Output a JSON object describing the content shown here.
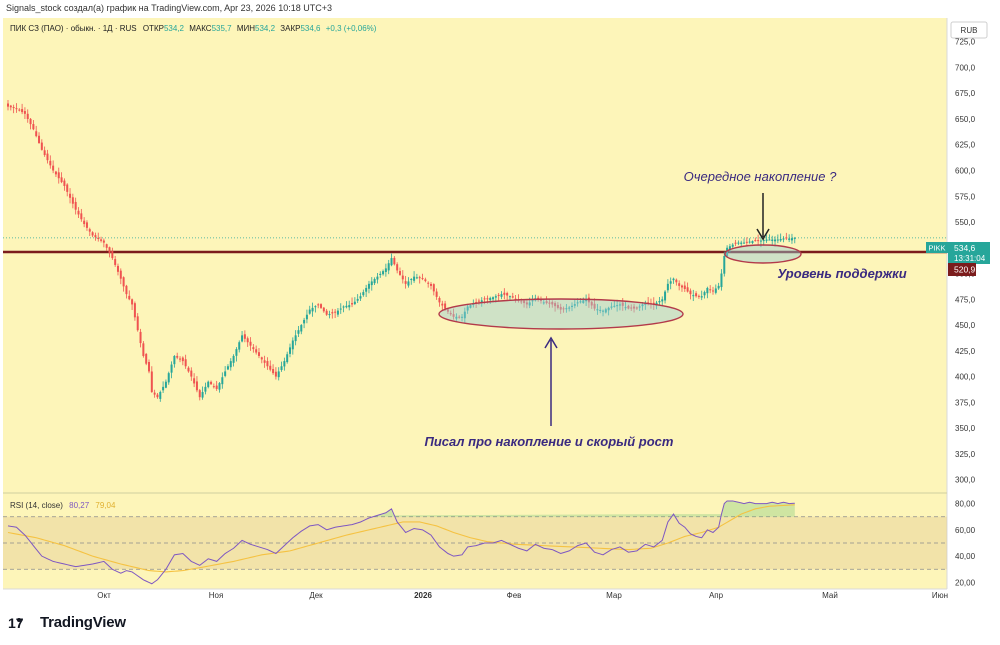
{
  "header": {
    "caption": "Signals_stock создал(а) график на TradingView.com, Apr 23, 2026 10:18 UTC+3"
  },
  "legend": {
    "symbol": "ПИК СЗ (ПАО) · обыкн. · 1Д · RUS",
    "o_label": "ОТКР",
    "o_val": "534,2",
    "h_label": "МАКС",
    "h_val": "535,7",
    "l_label": "МИН",
    "l_val": "534,2",
    "c_label": "ЗАКР",
    "c_val": "534,6",
    "chg": "+0,3 (+0,06%)"
  },
  "currency": "RUB",
  "price_badge": {
    "ticker": "PIKK",
    "price": "534,6",
    "timer": "13:31:04"
  },
  "support_badge": "520,9",
  "annotations": {
    "top": "Очередное накопление ?",
    "support": "Уровень поддержки",
    "bottom": "Писал про накопление и скорый рост"
  },
  "rsi": {
    "label": "RSI (14, close)",
    "val1": "80,27",
    "val2": "79,04"
  },
  "footer": {
    "logo_mark": "17",
    "brand": "TradingView"
  },
  "colors": {
    "up": "#26a69a",
    "down": "#ef5350",
    "bg": "#fdf5b9",
    "support": "#7b1c1c",
    "rsi_line": "#7e57c2",
    "rsi_ma": "#f5c242",
    "annotation": "#3a2a80"
  },
  "chart_data": {
    "type": "candlestick",
    "title": "ПИК СЗ (ПАО) · обыкн. · 1Д · RUS",
    "currency": "RUB",
    "y_ticks": [
      "725,0",
      "700,0",
      "675,0",
      "650,0",
      "625,0",
      "600,0",
      "575,0",
      "550,0",
      "525,0",
      "500,0",
      "475,0",
      "450,0",
      "425,0",
      "400,0",
      "375,0",
      "350,0",
      "325,0",
      "300,0"
    ],
    "ylim": [
      287,
      748
    ],
    "x_ticks": [
      "Окт",
      "Ноя",
      "Дек",
      "2026",
      "Фев",
      "Мар",
      "Апр",
      "Май",
      "Июн"
    ],
    "support_level": 520.9,
    "last_price": 534.6,
    "close_path": [
      [
        0,
        662
      ],
      [
        3,
        660
      ],
      [
        6,
        655
      ],
      [
        9,
        640
      ],
      [
        12,
        620
      ],
      [
        16,
        600
      ],
      [
        20,
        585
      ],
      [
        24,
        562
      ],
      [
        27,
        548
      ],
      [
        30,
        537
      ],
      [
        34,
        530
      ],
      [
        37,
        515
      ],
      [
        40,
        495
      ],
      [
        42,
        480
      ],
      [
        44,
        470
      ],
      [
        46,
        445
      ],
      [
        48,
        420
      ],
      [
        50,
        405
      ],
      [
        51,
        385
      ],
      [
        53,
        380
      ],
      [
        56,
        395
      ],
      [
        59,
        420
      ],
      [
        62,
        415
      ],
      [
        65,
        400
      ],
      [
        68,
        380
      ],
      [
        71,
        395
      ],
      [
        74,
        388
      ],
      [
        77,
        405
      ],
      [
        80,
        420
      ],
      [
        83,
        440
      ],
      [
        86,
        430
      ],
      [
        89,
        420
      ],
      [
        92,
        410
      ],
      [
        95,
        400
      ],
      [
        98,
        415
      ],
      [
        101,
        435
      ],
      [
        104,
        450
      ],
      [
        107,
        465
      ],
      [
        110,
        470
      ],
      [
        113,
        460
      ],
      [
        116,
        462
      ],
      [
        119,
        468
      ],
      [
        122,
        470
      ],
      [
        125,
        478
      ],
      [
        128,
        490
      ],
      [
        131,
        497
      ],
      [
        134,
        505
      ],
      [
        136,
        515
      ],
      [
        138,
        503
      ],
      [
        141,
        490
      ],
      [
        144,
        497
      ],
      [
        147,
        495
      ],
      [
        150,
        488
      ],
      [
        153,
        472
      ],
      [
        156,
        463
      ],
      [
        158,
        458
      ],
      [
        161,
        458
      ],
      [
        163,
        468
      ],
      [
        166,
        472
      ],
      [
        169,
        475
      ],
      [
        172,
        477
      ],
      [
        175,
        480
      ],
      [
        178,
        478
      ],
      [
        181,
        474
      ],
      [
        184,
        470
      ],
      [
        187,
        476
      ],
      [
        190,
        472
      ],
      [
        193,
        470
      ],
      [
        196,
        465
      ],
      [
        199,
        467
      ],
      [
        202,
        472
      ],
      [
        205,
        475
      ],
      [
        208,
        466
      ],
      [
        211,
        464
      ],
      [
        214,
        468
      ],
      [
        217,
        470
      ],
      [
        220,
        466
      ],
      [
        223,
        466
      ],
      [
        226,
        472
      ],
      [
        229,
        470
      ],
      [
        232,
        475
      ],
      [
        234,
        490
      ],
      [
        236,
        495
      ],
      [
        238,
        488
      ],
      [
        240,
        485
      ],
      [
        242,
        480
      ],
      [
        244,
        478
      ],
      [
        246,
        478
      ],
      [
        248,
        486
      ],
      [
        250,
        483
      ],
      [
        252,
        488
      ],
      [
        253,
        500
      ],
      [
        254,
        517
      ],
      [
        255,
        525
      ],
      [
        257,
        528
      ],
      [
        259,
        530
      ],
      [
        261,
        530
      ],
      [
        263,
        531
      ],
      [
        265,
        532
      ],
      [
        267,
        532
      ],
      [
        269,
        533
      ],
      [
        271,
        533
      ],
      [
        273,
        533
      ],
      [
        275,
        534
      ],
      [
        277,
        534
      ],
      [
        279,
        534.6
      ]
    ],
    "rsi": {
      "ylim": [
        15,
        85
      ],
      "overbought": 70,
      "middle": 50,
      "oversold": 30,
      "y_ticks": [
        "80,00",
        "60,00",
        "40,00",
        "20,00"
      ],
      "last": 80.27,
      "ma_last": 79.04,
      "values": [
        [
          0,
          63
        ],
        [
          3,
          62
        ],
        [
          6,
          56
        ],
        [
          9,
          48
        ],
        [
          12,
          40
        ],
        [
          16,
          36
        ],
        [
          20,
          34
        ],
        [
          24,
          32
        ],
        [
          27,
          33
        ],
        [
          30,
          34
        ],
        [
          34,
          36
        ],
        [
          37,
          30
        ],
        [
          40,
          27
        ],
        [
          42,
          29
        ],
        [
          44,
          28
        ],
        [
          46,
          25
        ],
        [
          48,
          22
        ],
        [
          50,
          20
        ],
        [
          51,
          19
        ],
        [
          53,
          22
        ],
        [
          56,
          30
        ],
        [
          59,
          41
        ],
        [
          62,
          42
        ],
        [
          65,
          36
        ],
        [
          68,
          33
        ],
        [
          71,
          38
        ],
        [
          74,
          36
        ],
        [
          77,
          42
        ],
        [
          80,
          46
        ],
        [
          83,
          52
        ],
        [
          86,
          49
        ],
        [
          89,
          47
        ],
        [
          92,
          45
        ],
        [
          95,
          42
        ],
        [
          98,
          48
        ],
        [
          101,
          54
        ],
        [
          104,
          59
        ],
        [
          107,
          63
        ],
        [
          110,
          64
        ],
        [
          113,
          60
        ],
        [
          116,
          62
        ],
        [
          119,
          63
        ],
        [
          122,
          64
        ],
        [
          125,
          66
        ],
        [
          128,
          69
        ],
        [
          131,
          71
        ],
        [
          134,
          73
        ],
        [
          136,
          76
        ],
        [
          138,
          66
        ],
        [
          141,
          58
        ],
        [
          144,
          61
        ],
        [
          147,
          60
        ],
        [
          150,
          56
        ],
        [
          153,
          47
        ],
        [
          156,
          42
        ],
        [
          158,
          40
        ],
        [
          161,
          41
        ],
        [
          163,
          47
        ],
        [
          166,
          48
        ],
        [
          169,
          50
        ],
        [
          172,
          50
        ],
        [
          175,
          52
        ],
        [
          178,
          49
        ],
        [
          181,
          46
        ],
        [
          184,
          44
        ],
        [
          187,
          49
        ],
        [
          190,
          46
        ],
        [
          193,
          45
        ],
        [
          196,
          42
        ],
        [
          199,
          44
        ],
        [
          202,
          48
        ],
        [
          205,
          50
        ],
        [
          208,
          43
        ],
        [
          211,
          41
        ],
        [
          214,
          45
        ],
        [
          217,
          47
        ],
        [
          220,
          43
        ],
        [
          223,
          44
        ],
        [
          226,
          49
        ],
        [
          229,
          47
        ],
        [
          232,
          52
        ],
        [
          234,
          66
        ],
        [
          236,
          72
        ],
        [
          238,
          65
        ],
        [
          240,
          62
        ],
        [
          242,
          57
        ],
        [
          244,
          55
        ],
        [
          246,
          54
        ],
        [
          248,
          60
        ],
        [
          250,
          58
        ],
        [
          252,
          62
        ],
        [
          253,
          72
        ],
        [
          254,
          80
        ],
        [
          255,
          82
        ],
        [
          257,
          82
        ],
        [
          259,
          81
        ],
        [
          261,
          80
        ],
        [
          263,
          81
        ],
        [
          265,
          80
        ],
        [
          267,
          80
        ],
        [
          269,
          80
        ],
        [
          271,
          81
        ],
        [
          273,
          80
        ],
        [
          275,
          81
        ],
        [
          277,
          80
        ],
        [
          279,
          80.27
        ]
      ],
      "ma": [
        [
          0,
          58
        ],
        [
          10,
          54
        ],
        [
          20,
          48
        ],
        [
          30,
          40
        ],
        [
          40,
          34
        ],
        [
          50,
          29
        ],
        [
          56,
          28
        ],
        [
          62,
          29
        ],
        [
          70,
          32
        ],
        [
          80,
          36
        ],
        [
          90,
          41
        ],
        [
          100,
          44
        ],
        [
          110,
          50
        ],
        [
          120,
          56
        ],
        [
          130,
          61
        ],
        [
          136,
          64
        ],
        [
          140,
          66
        ],
        [
          146,
          66
        ],
        [
          152,
          63
        ],
        [
          158,
          58
        ],
        [
          164,
          54
        ],
        [
          170,
          51
        ],
        [
          180,
          49
        ],
        [
          190,
          48
        ],
        [
          200,
          47
        ],
        [
          210,
          46
        ],
        [
          220,
          45
        ],
        [
          228,
          46
        ],
        [
          234,
          50
        ],
        [
          240,
          55
        ],
        [
          246,
          58
        ],
        [
          252,
          62
        ],
        [
          256,
          67
        ],
        [
          260,
          72
        ],
        [
          265,
          76
        ],
        [
          270,
          78
        ],
        [
          279,
          79.04
        ]
      ]
    }
  }
}
